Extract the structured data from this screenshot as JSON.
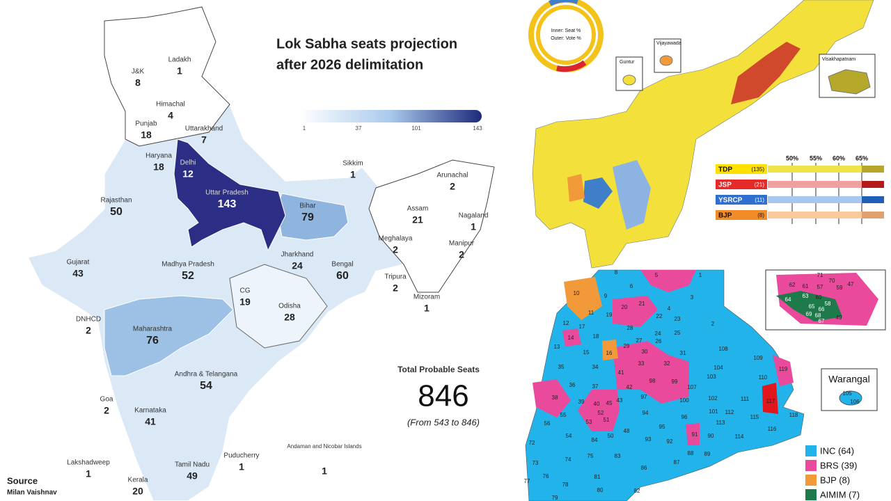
{
  "india": {
    "title_line1": "Lok Sabha seats projection",
    "title_line2": "after 2026 delimitation",
    "scale_ticks": [
      "1",
      "37",
      "101",
      "143"
    ],
    "states": [
      {
        "name": "Ladakh",
        "seats": "1"
      },
      {
        "name": "J&K",
        "seats": "8"
      },
      {
        "name": "Himachal",
        "seats": "4"
      },
      {
        "name": "Punjab",
        "seats": "18"
      },
      {
        "name": "Uttarakhand",
        "seats": "7"
      },
      {
        "name": "Haryana",
        "seats": "18"
      },
      {
        "name": "Delhi",
        "seats": "12"
      },
      {
        "name": "Uttar Pradesh",
        "seats": "143"
      },
      {
        "name": "Rajasthan",
        "seats": "50"
      },
      {
        "name": "Bihar",
        "seats": "79"
      },
      {
        "name": "Sikkim",
        "seats": "1"
      },
      {
        "name": "Arunachal",
        "seats": "2"
      },
      {
        "name": "Assam",
        "seats": "21"
      },
      {
        "name": "Nagaland",
        "seats": "1"
      },
      {
        "name": "Meghalaya",
        "seats": "2"
      },
      {
        "name": "Manipur",
        "seats": "2"
      },
      {
        "name": "Tripura",
        "seats": "2"
      },
      {
        "name": "Mizoram",
        "seats": "1"
      },
      {
        "name": "Gujarat",
        "seats": "43"
      },
      {
        "name": "Madhya Pradesh",
        "seats": "52"
      },
      {
        "name": "Jharkhand",
        "seats": "24"
      },
      {
        "name": "Bengal",
        "seats": "60"
      },
      {
        "name": "CG",
        "seats": "19"
      },
      {
        "name": "Odisha",
        "seats": "28"
      },
      {
        "name": "DNHCD",
        "seats": "2"
      },
      {
        "name": "Maharashtra",
        "seats": "76"
      },
      {
        "name": "Andhra & Telangana",
        "seats": "54"
      },
      {
        "name": "Goa",
        "seats": "2"
      },
      {
        "name": "Karnataka",
        "seats": "41"
      },
      {
        "name": "Puducherry",
        "seats": "1"
      },
      {
        "name": "Andaman and Nicobar Islands",
        "seats": "1"
      },
      {
        "name": "Lakshadweep",
        "seats": "1"
      },
      {
        "name": "Tamil Nadu",
        "seats": "49"
      },
      {
        "name": "Kerala",
        "seats": "20"
      }
    ],
    "total_label": "Total Probable Seats",
    "total": "846",
    "total_note": "(From 543 to 846)",
    "source_label": "Source",
    "source_name": "Milan Vaishnav"
  },
  "andhra": {
    "donut_inner": "Inner: Seat %",
    "donut_outer": "Outer: Vote %",
    "insets": [
      "Guntur",
      "Vijayawada",
      "Visakhapatnam"
    ],
    "percent_headers": [
      "50%",
      "55%",
      "60%",
      "65%"
    ],
    "legend": [
      {
        "party": "TDP",
        "seats": "(135)"
      },
      {
        "party": "JSP",
        "seats": "(21)"
      },
      {
        "party": "YSRCP",
        "seats": "(11)"
      },
      {
        "party": "BJP",
        "seats": "(8)"
      }
    ]
  },
  "telangana": {
    "inset": "Warangal",
    "legend": [
      "INC (64)",
      "BRS (39)",
      "BJP (8)",
      "AIMIM (7)"
    ],
    "seat_numbers": [
      "5",
      "1",
      "6",
      "3",
      "21",
      "20",
      "4",
      "19",
      "22",
      "23",
      "2",
      "11",
      "10",
      "9",
      "8",
      "12",
      "17",
      "28",
      "14",
      "18",
      "24",
      "25",
      "27",
      "26",
      "15",
      "29",
      "13",
      "16",
      "30",
      "31",
      "108",
      "109",
      "33",
      "34",
      "35",
      "32",
      "104",
      "119",
      "41",
      "103",
      "110",
      "37",
      "98",
      "99",
      "107",
      "36",
      "42",
      "97",
      "100",
      "102",
      "111",
      "117",
      "38",
      "39",
      "40",
      "45",
      "43",
      "52",
      "94",
      "101",
      "112",
      "115",
      "118",
      "55",
      "53",
      "51",
      "96",
      "113",
      "56",
      "95",
      "116",
      "54",
      "50",
      "48",
      "91",
      "90",
      "114",
      "72",
      "84",
      "93",
      "92",
      "75",
      "83",
      "88",
      "89",
      "73",
      "74",
      "87",
      "76",
      "81",
      "86",
      "77",
      "78",
      "80",
      "82",
      "79",
      "71",
      "62",
      "61",
      "57",
      "70",
      "59",
      "47",
      "60",
      "63",
      "64",
      "58",
      "65",
      "66",
      "69",
      "68",
      "67",
      "49",
      "105",
      "106"
    ]
  }
}
